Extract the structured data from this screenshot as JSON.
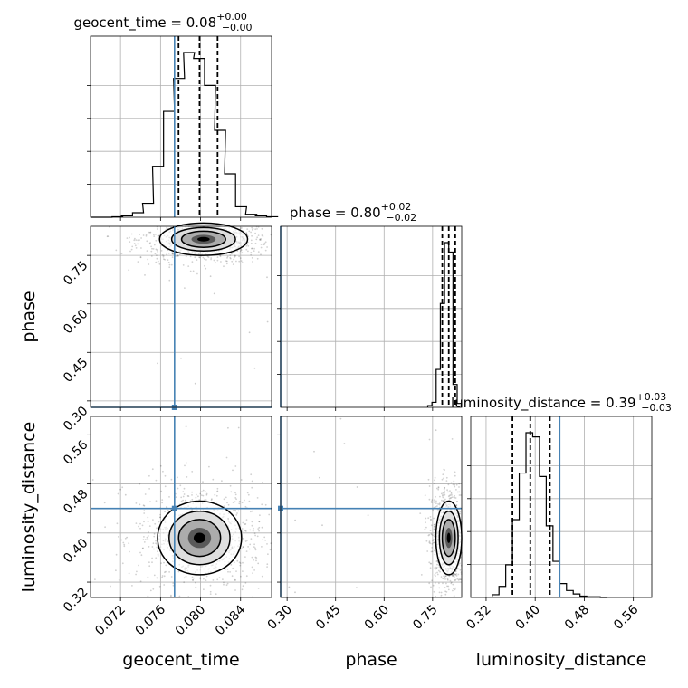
{
  "chart_data": [
    {
      "type": "histogram",
      "panel": "geocent_time-marginal",
      "title": {
        "name": "geocent_time",
        "median": "0.08",
        "plus": "+0.00",
        "minus": "−0.00"
      },
      "x": [
        0.069,
        0.0701,
        0.0711,
        0.0721,
        0.0732,
        0.0742,
        0.0752,
        0.0763,
        0.0773,
        0.0783,
        0.0793,
        0.0804,
        0.0814,
        0.0824,
        0.0835,
        0.0845,
        0.0855,
        0.0866
      ],
      "values": [
        0,
        0,
        1,
        3,
        9,
        28,
        102,
        212,
        278,
        330,
        318,
        264,
        174,
        87,
        21,
        6,
        3,
        1
      ],
      "quantiles": [
        0.0778,
        0.0799,
        0.0817
      ],
      "truth": 0.0774,
      "xlim": [
        0.069,
        0.0871
      ],
      "ylabel": "",
      "grid": true
    },
    {
      "type": "histogram",
      "panel": "phase-marginal",
      "title": {
        "name": "phase",
        "median": "0.80",
        "plus": "+0.02",
        "minus": "−0.02"
      },
      "x": [
        0.735,
        0.748,
        0.761,
        0.774,
        0.787,
        0.8,
        0.813,
        0.826
      ],
      "values": [
        3,
        9,
        68,
        186,
        295,
        278,
        41,
        7
      ],
      "quantiles": [
        0.78,
        0.8,
        0.82
      ],
      "truth": 0.28,
      "xlim": [
        0.28,
        0.84
      ],
      "grid": true
    },
    {
      "type": "histogram",
      "panel": "luminosity_distance-marginal",
      "title": {
        "name": "luminosity_distance",
        "median": "0.39",
        "plus": "+0.03",
        "minus": "−0.03"
      },
      "x": [
        0.33,
        0.341,
        0.352,
        0.363,
        0.374,
        0.385,
        0.396,
        0.407,
        0.418,
        0.429,
        0.44,
        0.451,
        0.462,
        0.473,
        0.484,
        0.495,
        0.506
      ],
      "values": [
        4,
        16,
        47,
        112,
        179,
        237,
        231,
        174,
        103,
        52,
        20,
        10,
        5,
        2,
        1,
        1,
        0
      ],
      "quantiles": [
        0.363,
        0.392,
        0.424
      ],
      "truth": 0.44,
      "xlim": [
        0.295,
        0.59
      ],
      "grid": true
    },
    {
      "type": "scatter-contour",
      "panel": "geocent_time-vs-phase",
      "ylabel": "phase",
      "yticks": [
        "0.30",
        "0.45",
        "0.60",
        "0.75"
      ],
      "center": [
        0.0803,
        0.8
      ],
      "spread": [
        0.0022,
        0.025
      ],
      "truth": [
        0.0774,
        0.28
      ],
      "xlim": [
        0.069,
        0.0871
      ],
      "ylim": [
        0.28,
        0.84
      ]
    },
    {
      "type": "scatter-contour",
      "panel": "geocent_time-vs-luminosity_distance",
      "xlabel": "geocent_time",
      "ylabel": "luminosity_distance",
      "xticks": [
        "0.072",
        "0.076",
        "0.080",
        "0.084"
      ],
      "yticks": [
        "0.32",
        "0.40",
        "0.48",
        "0.56"
      ],
      "center": [
        0.0799,
        0.392
      ],
      "spread": [
        0.0021,
        0.03
      ],
      "truth": [
        0.0774,
        0.44
      ],
      "xlim": [
        0.069,
        0.0871
      ],
      "ylim": [
        0.295,
        0.59
      ]
    },
    {
      "type": "scatter-contour",
      "panel": "phase-vs-luminosity_distance",
      "xlabel": "phase",
      "xticks": [
        "0.30",
        "0.45",
        "0.60",
        "0.75"
      ],
      "center": [
        0.8,
        0.392
      ],
      "spread": [
        0.02,
        0.03
      ],
      "truth": [
        0.28,
        0.44
      ],
      "xlim": [
        0.28,
        0.84
      ],
      "ylim": [
        0.295,
        0.59
      ]
    },
    {
      "type": "axis",
      "panel": "luminosity_distance-marginal-axis",
      "xlabel": "luminosity_distance",
      "xticks": [
        "0.32",
        "0.40",
        "0.48",
        "0.56"
      ]
    }
  ],
  "colors": {
    "truth": "#4682b4",
    "contour": "#000000",
    "grid": "#b0b0b0",
    "points": "#000000"
  }
}
